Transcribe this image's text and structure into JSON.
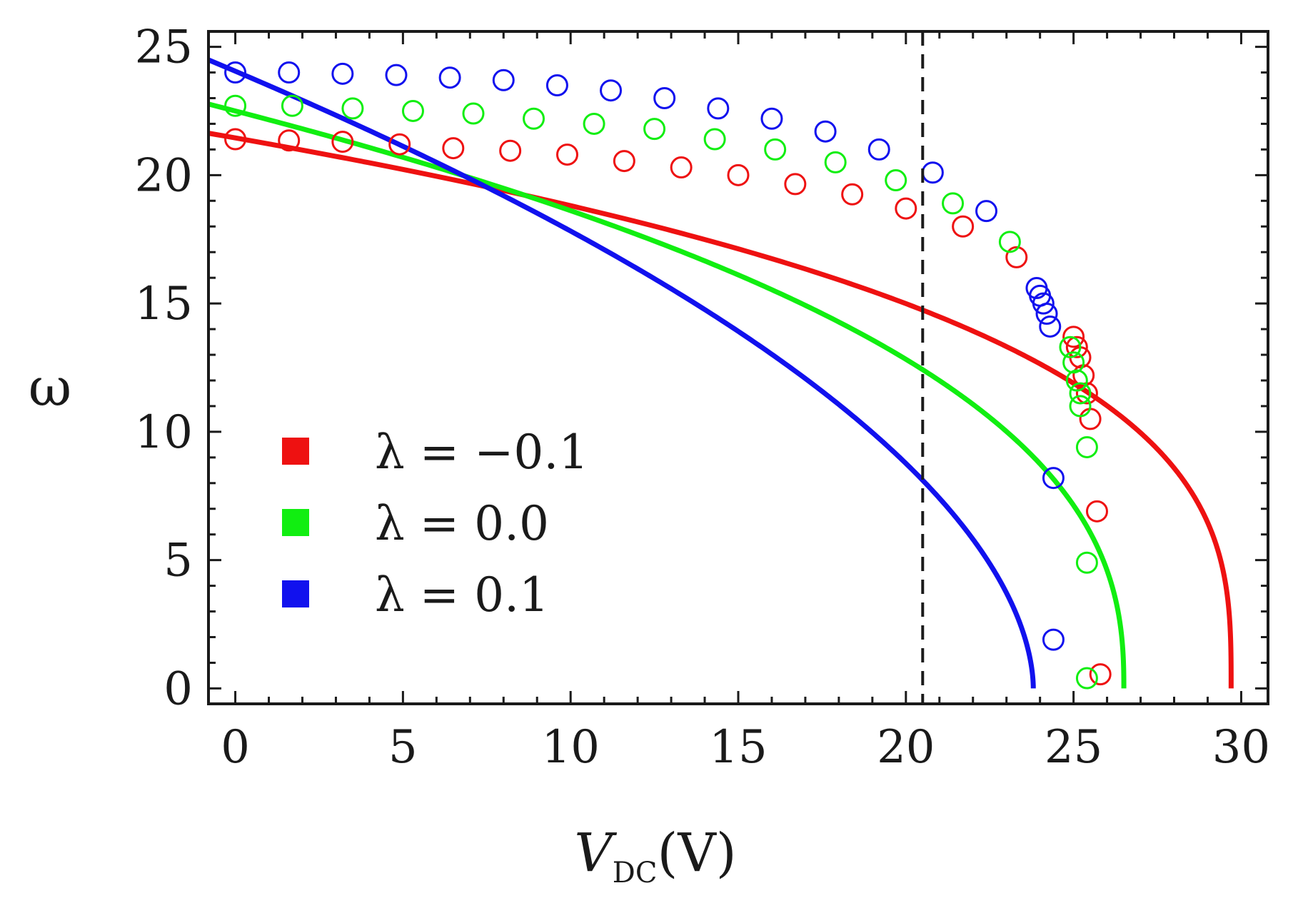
{
  "chart_data": {
    "type": "line",
    "title": "",
    "xlabel": "V",
    "xlabel_subscript": "DC",
    "xlabel_unit": "(V)",
    "ylabel": "ω",
    "xlim": [
      -0.8,
      30.8
    ],
    "ylim": [
      -0.6,
      25.6
    ],
    "xticks": [
      0,
      5,
      10,
      15,
      20,
      25,
      30
    ],
    "yticks": [
      0,
      5,
      10,
      15,
      20,
      25
    ],
    "x_minor_step": 1,
    "y_minor_step": 1,
    "vline_x": 20.5,
    "legend_position": "left-middle",
    "series": [
      {
        "name": "λ = −0.1",
        "legend_label": "λ = −0.1",
        "color": "#ee1111",
        "curve": {
          "w0": 21.45,
          "vc": 29.7,
          "exponent": 0.32,
          "x_start": -0.8,
          "x_end": 29.7
        },
        "markers": [
          [
            0,
            21.4
          ],
          [
            1.6,
            21.35
          ],
          [
            3.2,
            21.3
          ],
          [
            4.9,
            21.2
          ],
          [
            6.5,
            21.05
          ],
          [
            8.2,
            20.95
          ],
          [
            9.9,
            20.8
          ],
          [
            11.6,
            20.55
          ],
          [
            13.3,
            20.3
          ],
          [
            15.0,
            20.0
          ],
          [
            16.7,
            19.65
          ],
          [
            18.4,
            19.25
          ],
          [
            20.0,
            18.7
          ],
          [
            21.7,
            18.0
          ],
          [
            23.3,
            16.8
          ],
          [
            25.0,
            13.7
          ],
          [
            25.1,
            13.3
          ],
          [
            25.2,
            12.9
          ],
          [
            25.3,
            12.2
          ],
          [
            25.4,
            11.5
          ],
          [
            25.5,
            10.5
          ],
          [
            25.7,
            6.9
          ],
          [
            25.8,
            0.55
          ]
        ]
      },
      {
        "name": "λ = 0.0",
        "legend_label": "λ = 0.0",
        "color": "#11ee11",
        "curve": {
          "w0": 22.5,
          "vc": 26.5,
          "exponent": 0.4,
          "x_start": -0.8,
          "x_end": 26.5
        },
        "markers": [
          [
            0,
            22.7
          ],
          [
            1.7,
            22.7
          ],
          [
            3.5,
            22.6
          ],
          [
            5.3,
            22.5
          ],
          [
            7.1,
            22.4
          ],
          [
            8.9,
            22.2
          ],
          [
            10.7,
            22.0
          ],
          [
            12.5,
            21.8
          ],
          [
            14.3,
            21.4
          ],
          [
            16.1,
            21.0
          ],
          [
            17.9,
            20.5
          ],
          [
            19.7,
            19.8
          ],
          [
            21.4,
            18.9
          ],
          [
            23.1,
            17.4
          ],
          [
            24.9,
            13.3
          ],
          [
            25.0,
            12.7
          ],
          [
            25.1,
            12.0
          ],
          [
            25.2,
            11.5
          ],
          [
            25.2,
            11.0
          ],
          [
            25.4,
            9.4
          ],
          [
            25.4,
            4.9
          ],
          [
            25.4,
            0.4
          ]
        ]
      },
      {
        "name": "λ = 0.1",
        "legend_label": "λ = 0.1",
        "color": "#1111ee",
        "curve": {
          "w0": 24.05,
          "vc": 23.8,
          "exponent": 0.55,
          "x_start": -0.8,
          "x_end": 23.8
        },
        "markers": [
          [
            0,
            24.0
          ],
          [
            1.6,
            24.0
          ],
          [
            3.2,
            23.95
          ],
          [
            4.8,
            23.9
          ],
          [
            6.4,
            23.8
          ],
          [
            8.0,
            23.7
          ],
          [
            9.6,
            23.5
          ],
          [
            11.2,
            23.3
          ],
          [
            12.8,
            23.0
          ],
          [
            14.4,
            22.6
          ],
          [
            16.0,
            22.2
          ],
          [
            17.6,
            21.7
          ],
          [
            19.2,
            21.0
          ],
          [
            20.8,
            20.1
          ],
          [
            22.4,
            18.6
          ],
          [
            23.9,
            15.6
          ],
          [
            24.0,
            15.3
          ],
          [
            24.1,
            15.0
          ],
          [
            24.2,
            14.6
          ],
          [
            24.3,
            14.1
          ],
          [
            24.4,
            8.2
          ],
          [
            24.4,
            1.9
          ]
        ]
      }
    ]
  }
}
